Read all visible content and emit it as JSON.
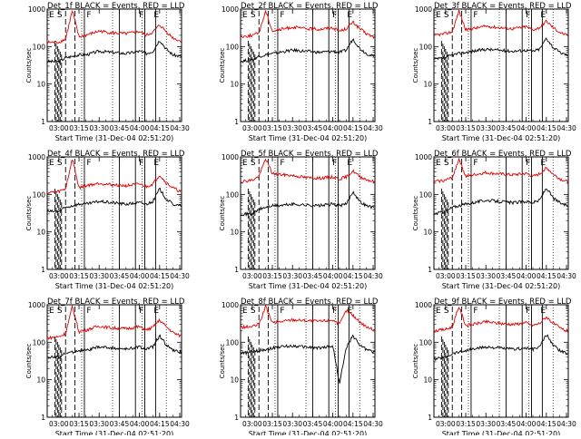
{
  "colors": {
    "events": "#000000",
    "lld": "#e00000",
    "axes": "#000000",
    "background": "#ffffff"
  },
  "common": {
    "xlabel": "Start Time (31-Dec-04 02:51:20)",
    "ylabel": "Counts/sec",
    "x_tick_labels": [
      "03:00",
      "03:15",
      "03:30",
      "03:45",
      "04:00",
      "04:15",
      "04:30"
    ],
    "y_tick_labels": [
      "1",
      "10",
      "100",
      "1000"
    ]
  },
  "chart_data": [
    {
      "type": "line",
      "title": "Det_1f BLACK = Events, RED = LLD",
      "xlabel": "Start Time (31-Dec-04 02:51:20)",
      "ylabel": "Counts/sec",
      "xlim": [
        "02:51:20",
        "04:31:20"
      ],
      "ylim": [
        1,
        1000
      ],
      "yscale": "log",
      "annotations": [
        "E",
        "S",
        "F",
        "F",
        "E"
      ],
      "series": [
        {
          "name": "Events",
          "color": "#000000",
          "x": [
            "02:51",
            "03:00",
            "03:05",
            "03:10",
            "03:15",
            "03:20",
            "03:30",
            "03:40",
            "03:50",
            "04:00",
            "04:05",
            "04:10",
            "04:15",
            "04:20",
            "04:25",
            "04:30"
          ],
          "values": [
            40,
            40,
            50,
            55,
            60,
            60,
            75,
            70,
            65,
            75,
            65,
            75,
            150,
            85,
            60,
            55
          ]
        },
        {
          "name": "LLD",
          "color": "#e00000",
          "x": [
            "02:51",
            "03:00",
            "03:05",
            "03:10",
            "03:15",
            "03:20",
            "03:30",
            "03:40",
            "03:50",
            "04:00",
            "04:05",
            "04:10",
            "04:15",
            "04:20",
            "04:25",
            "04:30"
          ],
          "values": [
            130,
            130,
            160,
            900,
            180,
            200,
            260,
            230,
            220,
            250,
            200,
            240,
            380,
            250,
            170,
            140
          ]
        }
      ]
    },
    {
      "type": "line",
      "title": "Det_2f BLACK = Events, RED = LLD",
      "xlabel": "Start Time (31-Dec-04 02:51:20)",
      "ylabel": "Counts/sec",
      "xlim": [
        "02:51:20",
        "04:31:20"
      ],
      "ylim": [
        1,
        1000
      ],
      "yscale": "log",
      "annotations": [
        "E",
        "S",
        "F",
        "F",
        "E"
      ],
      "series": [
        {
          "name": "Events",
          "color": "#000000",
          "x": [
            "02:51",
            "03:00",
            "03:05",
            "03:10",
            "03:15",
            "03:20",
            "03:30",
            "03:40",
            "03:50",
            "04:00",
            "04:05",
            "04:10",
            "04:15",
            "04:20",
            "04:25",
            "04:30"
          ],
          "values": [
            40,
            45,
            55,
            60,
            65,
            70,
            80,
            75,
            70,
            75,
            70,
            80,
            160,
            90,
            65,
            55
          ]
        },
        {
          "name": "LLD",
          "color": "#e00000",
          "x": [
            "02:51",
            "03:00",
            "03:05",
            "03:10",
            "03:15",
            "03:20",
            "03:30",
            "03:40",
            "03:50",
            "04:00",
            "04:05",
            "04:10",
            "04:15",
            "04:20",
            "04:25",
            "04:30"
          ],
          "values": [
            180,
            200,
            230,
            900,
            260,
            280,
            330,
            300,
            290,
            320,
            260,
            300,
            450,
            300,
            220,
            180
          ]
        }
      ]
    },
    {
      "type": "line",
      "title": "Det_3f BLACK = Events, RED = LLD",
      "xlabel": "Start Time (31-Dec-04 02:51:20)",
      "ylabel": "Counts/sec",
      "xlim": [
        "02:51:20",
        "04:31:20"
      ],
      "ylim": [
        1,
        1000
      ],
      "yscale": "log",
      "annotations": [
        "E",
        "S",
        "F",
        "F",
        "E"
      ],
      "series": [
        {
          "name": "Events",
          "color": "#000000",
          "x": [
            "02:51",
            "03:00",
            "03:05",
            "03:10",
            "03:15",
            "03:20",
            "03:30",
            "03:40",
            "03:50",
            "04:00",
            "04:05",
            "04:10",
            "04:15",
            "04:20",
            "04:25",
            "04:30"
          ],
          "values": [
            45,
            50,
            60,
            65,
            70,
            75,
            85,
            80,
            75,
            80,
            75,
            85,
            170,
            95,
            70,
            60
          ]
        },
        {
          "name": "LLD",
          "color": "#e00000",
          "x": [
            "02:51",
            "03:00",
            "03:05",
            "03:10",
            "03:15",
            "03:20",
            "03:30",
            "03:40",
            "03:50",
            "04:00",
            "04:05",
            "04:10",
            "04:15",
            "04:20",
            "04:25",
            "04:30"
          ],
          "values": [
            200,
            220,
            250,
            900,
            280,
            300,
            350,
            320,
            300,
            340,
            280,
            320,
            480,
            320,
            240,
            200
          ]
        }
      ]
    },
    {
      "type": "line",
      "title": "Det_4f BLACK = Events, RED = LLD",
      "xlabel": "Start Time (31-Dec-04 02:51:20)",
      "ylabel": "Counts/sec",
      "xlim": [
        "02:51:20",
        "04:31:20"
      ],
      "ylim": [
        1,
        1000
      ],
      "yscale": "log",
      "annotations": [
        "E",
        "S",
        "F",
        "F",
        "E"
      ],
      "series": [
        {
          "name": "Events",
          "color": "#000000",
          "x": [
            "02:51",
            "03:00",
            "03:05",
            "03:10",
            "03:15",
            "03:20",
            "03:30",
            "03:40",
            "03:50",
            "04:00",
            "04:05",
            "04:10",
            "04:15",
            "04:20",
            "04:25",
            "04:30"
          ],
          "values": [
            35,
            35,
            45,
            50,
            55,
            55,
            65,
            60,
            55,
            60,
            55,
            65,
            140,
            75,
            55,
            50
          ]
        },
        {
          "name": "LLD",
          "color": "#e00000",
          "x": [
            "02:51",
            "03:00",
            "03:05",
            "03:10",
            "03:15",
            "03:20",
            "03:30",
            "03:40",
            "03:50",
            "04:00",
            "04:05",
            "04:10",
            "04:15",
            "04:20",
            "04:25",
            "04:30"
          ],
          "values": [
            110,
            120,
            140,
            900,
            150,
            170,
            200,
            180,
            170,
            190,
            160,
            190,
            330,
            200,
            150,
            120
          ]
        }
      ]
    },
    {
      "type": "line",
      "title": "Det_5f BLACK = Events, RED = LLD",
      "xlabel": "Start Time (31-Dec-04 02:51:20)",
      "ylabel": "Counts/sec",
      "xlim": [
        "02:51:20",
        "04:31:20"
      ],
      "ylim": [
        1,
        1000
      ],
      "yscale": "log",
      "annotations": [
        "E",
        "S",
        "F",
        "F",
        "E"
      ],
      "series": [
        {
          "name": "Events",
          "color": "#000000",
          "x": [
            "02:51",
            "03:00",
            "03:05",
            "03:10",
            "03:15",
            "03:20",
            "03:30",
            "03:40",
            "03:50",
            "04:00",
            "04:05",
            "04:10",
            "04:15",
            "04:20",
            "04:25",
            "04:30"
          ],
          "values": [
            30,
            30,
            40,
            45,
            50,
            50,
            55,
            52,
            50,
            55,
            50,
            55,
            120,
            65,
            50,
            45
          ]
        },
        {
          "name": "LLD",
          "color": "#e00000",
          "x": [
            "02:51",
            "03:00",
            "03:05",
            "03:10",
            "03:15",
            "03:20",
            "03:30",
            "03:40",
            "03:50",
            "04:00",
            "04:05",
            "04:10",
            "04:15",
            "04:20",
            "04:25",
            "04:30"
          ],
          "values": [
            220,
            240,
            300,
            900,
            360,
            340,
            320,
            280,
            270,
            290,
            260,
            290,
            420,
            300,
            250,
            220
          ]
        }
      ]
    },
    {
      "type": "line",
      "title": "Det_6f BLACK = Events, RED = LLD",
      "xlabel": "Start Time (31-Dec-04 02:51:20)",
      "ylabel": "Counts/sec",
      "xlim": [
        "02:51:20",
        "04:31:20"
      ],
      "ylim": [
        1,
        1000
      ],
      "yscale": "log",
      "annotations": [
        "E",
        "S",
        "F",
        "F",
        "E"
      ],
      "series": [
        {
          "name": "Events",
          "color": "#000000",
          "x": [
            "02:51",
            "03:00",
            "03:05",
            "03:10",
            "03:15",
            "03:20",
            "03:30",
            "03:40",
            "03:50",
            "04:00",
            "04:05",
            "04:10",
            "04:15",
            "04:20",
            "04:25",
            "04:30"
          ],
          "values": [
            30,
            35,
            45,
            50,
            55,
            60,
            70,
            65,
            60,
            65,
            60,
            70,
            150,
            80,
            60,
            50
          ]
        },
        {
          "name": "LLD",
          "color": "#e00000",
          "x": [
            "02:51",
            "03:00",
            "03:05",
            "03:10",
            "03:15",
            "03:20",
            "03:30",
            "03:40",
            "03:50",
            "04:00",
            "04:05",
            "04:10",
            "04:15",
            "04:20",
            "04:25",
            "04:30"
          ],
          "values": [
            220,
            240,
            280,
            900,
            300,
            330,
            380,
            350,
            330,
            360,
            300,
            350,
            520,
            350,
            260,
            220
          ]
        }
      ]
    },
    {
      "type": "line",
      "title": "Det_7f BLACK = Events, RED = LLD",
      "xlabel": "Start Time (31-Dec-04 02:51:20)",
      "ylabel": "Counts/sec",
      "xlim": [
        "02:51:20",
        "04:31:20"
      ],
      "ylim": [
        1,
        1000
      ],
      "yscale": "log",
      "annotations": [
        "E",
        "S",
        "F",
        "F",
        "E"
      ],
      "series": [
        {
          "name": "Events",
          "color": "#000000",
          "x": [
            "02:51",
            "03:00",
            "03:05",
            "03:10",
            "03:15",
            "03:20",
            "03:30",
            "03:40",
            "03:50",
            "04:00",
            "04:05",
            "04:10",
            "04:15",
            "04:20",
            "04:25",
            "04:30"
          ],
          "values": [
            40,
            40,
            50,
            55,
            60,
            60,
            75,
            70,
            65,
            75,
            65,
            75,
            150,
            85,
            60,
            55
          ]
        },
        {
          "name": "LLD",
          "color": "#e00000",
          "x": [
            "02:51",
            "03:00",
            "03:05",
            "03:10",
            "03:15",
            "03:20",
            "03:30",
            "03:40",
            "03:50",
            "04:00",
            "04:05",
            "04:10",
            "04:15",
            "04:20",
            "04:25",
            "04:30"
          ],
          "values": [
            130,
            140,
            170,
            900,
            190,
            210,
            270,
            240,
            230,
            260,
            210,
            250,
            390,
            260,
            180,
            150
          ]
        }
      ]
    },
    {
      "type": "line",
      "title": "Det_8f BLACK = Events, RED = LLD",
      "xlabel": "Start Time (31-Dec-04 02:51:20)",
      "ylabel": "Counts/sec",
      "xlim": [
        "02:51:20",
        "04:31:20"
      ],
      "ylim": [
        1,
        1000
      ],
      "yscale": "log",
      "annotations": [
        "E",
        "S",
        "F",
        "F",
        "E"
      ],
      "series": [
        {
          "name": "Events",
          "color": "#000000",
          "x": [
            "02:51",
            "03:00",
            "03:05",
            "03:10",
            "03:15",
            "03:20",
            "03:30",
            "03:40",
            "03:50",
            "04:00",
            "04:05",
            "04:10",
            "04:15",
            "04:20",
            "04:25",
            "04:30"
          ],
          "values": [
            50,
            55,
            60,
            65,
            70,
            75,
            80,
            75,
            70,
            80,
            8,
            70,
            150,
            85,
            65,
            55
          ]
        },
        {
          "name": "LLD",
          "color": "#e00000",
          "x": [
            "02:51",
            "03:00",
            "03:05",
            "03:10",
            "03:15",
            "03:20",
            "03:30",
            "03:40",
            "03:50",
            "04:00",
            "04:05",
            "04:10",
            "04:15",
            "04:20",
            "04:25",
            "04:30"
          ],
          "values": [
            250,
            260,
            300,
            900,
            330,
            350,
            400,
            380,
            360,
            400,
            300,
            700,
            520,
            350,
            260,
            220
          ]
        }
      ]
    },
    {
      "type": "line",
      "title": "Det_9f BLACK = Events, RED = LLD",
      "xlabel": "Start Time (31-Dec-04 02:51:20)",
      "ylabel": "Counts/sec",
      "xlim": [
        "02:51:20",
        "04:31:20"
      ],
      "ylim": [
        1,
        1000
      ],
      "yscale": "log",
      "annotations": [
        "E",
        "S",
        "F",
        "F",
        "E"
      ],
      "series": [
        {
          "name": "Events",
          "color": "#000000",
          "x": [
            "02:51",
            "03:00",
            "03:05",
            "03:10",
            "03:15",
            "03:20",
            "03:30",
            "03:40",
            "03:50",
            "04:00",
            "04:05",
            "04:10",
            "04:15",
            "04:20",
            "04:25",
            "04:30"
          ],
          "values": [
            35,
            40,
            50,
            55,
            60,
            65,
            75,
            70,
            65,
            70,
            65,
            75,
            160,
            85,
            60,
            50
          ]
        },
        {
          "name": "LLD",
          "color": "#e00000",
          "x": [
            "02:51",
            "03:00",
            "03:05",
            "03:10",
            "03:15",
            "03:20",
            "03:30",
            "03:40",
            "03:50",
            "04:00",
            "04:05",
            "04:10",
            "04:15",
            "04:20",
            "04:25",
            "04:30"
          ],
          "values": [
            200,
            220,
            260,
            900,
            280,
            300,
            350,
            320,
            300,
            330,
            280,
            320,
            480,
            320,
            240,
            200
          ]
        }
      ]
    }
  ]
}
